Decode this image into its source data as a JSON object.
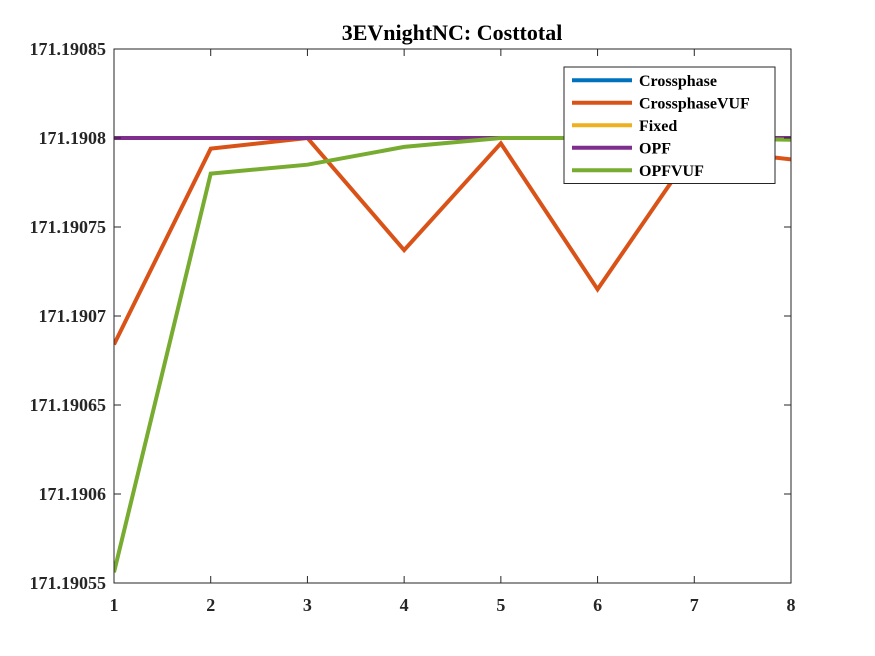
{
  "chart_data": {
    "type": "line",
    "title": "3EVnightNC: Costtotal",
    "xlabel": "",
    "ylabel": "",
    "xlim": [
      1,
      8
    ],
    "ylim": [
      171.19055,
      171.19085
    ],
    "x_ticks": [
      1,
      2,
      3,
      4,
      5,
      6,
      7,
      8
    ],
    "x_tick_labels": [
      "1",
      "2",
      "3",
      "4",
      "5",
      "6",
      "7",
      "8"
    ],
    "y_ticks": [
      171.19055,
      171.1906,
      171.19065,
      171.1907,
      171.19075,
      171.1908,
      171.19085
    ],
    "y_tick_labels": [
      "171.19055",
      "171.1906",
      "171.19065",
      "171.1907",
      "171.19075",
      "171.1908",
      "171.19085"
    ],
    "grid": false,
    "legend_position": "top-right",
    "x": [
      1,
      2,
      3,
      4,
      5,
      6,
      7,
      8
    ],
    "series": [
      {
        "name": "Crossphase",
        "color": "#0072BD",
        "values": [
          171.1908,
          171.1908,
          171.1908,
          171.1908,
          171.1908,
          171.1908,
          171.1908,
          171.1908
        ]
      },
      {
        "name": "CrossphaseVUF",
        "color": "#D95319",
        "values": [
          171.190684,
          171.190794,
          171.1908,
          171.190737,
          171.190797,
          171.190715,
          171.190794,
          171.190788
        ]
      },
      {
        "name": "Fixed",
        "color": "#EDB120",
        "values": [
          171.1908,
          171.1908,
          171.1908,
          171.1908,
          171.1908,
          171.1908,
          171.1908,
          171.1908
        ]
      },
      {
        "name": "OPF",
        "color": "#7E2F8E",
        "values": [
          171.1908,
          171.1908,
          171.1908,
          171.1908,
          171.1908,
          171.1908,
          171.1908,
          171.1908
        ]
      },
      {
        "name": "OPFVUF",
        "color": "#77AC30",
        "values": [
          171.190556,
          171.19078,
          171.190785,
          171.190795,
          171.1908,
          171.1908,
          171.1908,
          171.190799
        ]
      }
    ]
  }
}
